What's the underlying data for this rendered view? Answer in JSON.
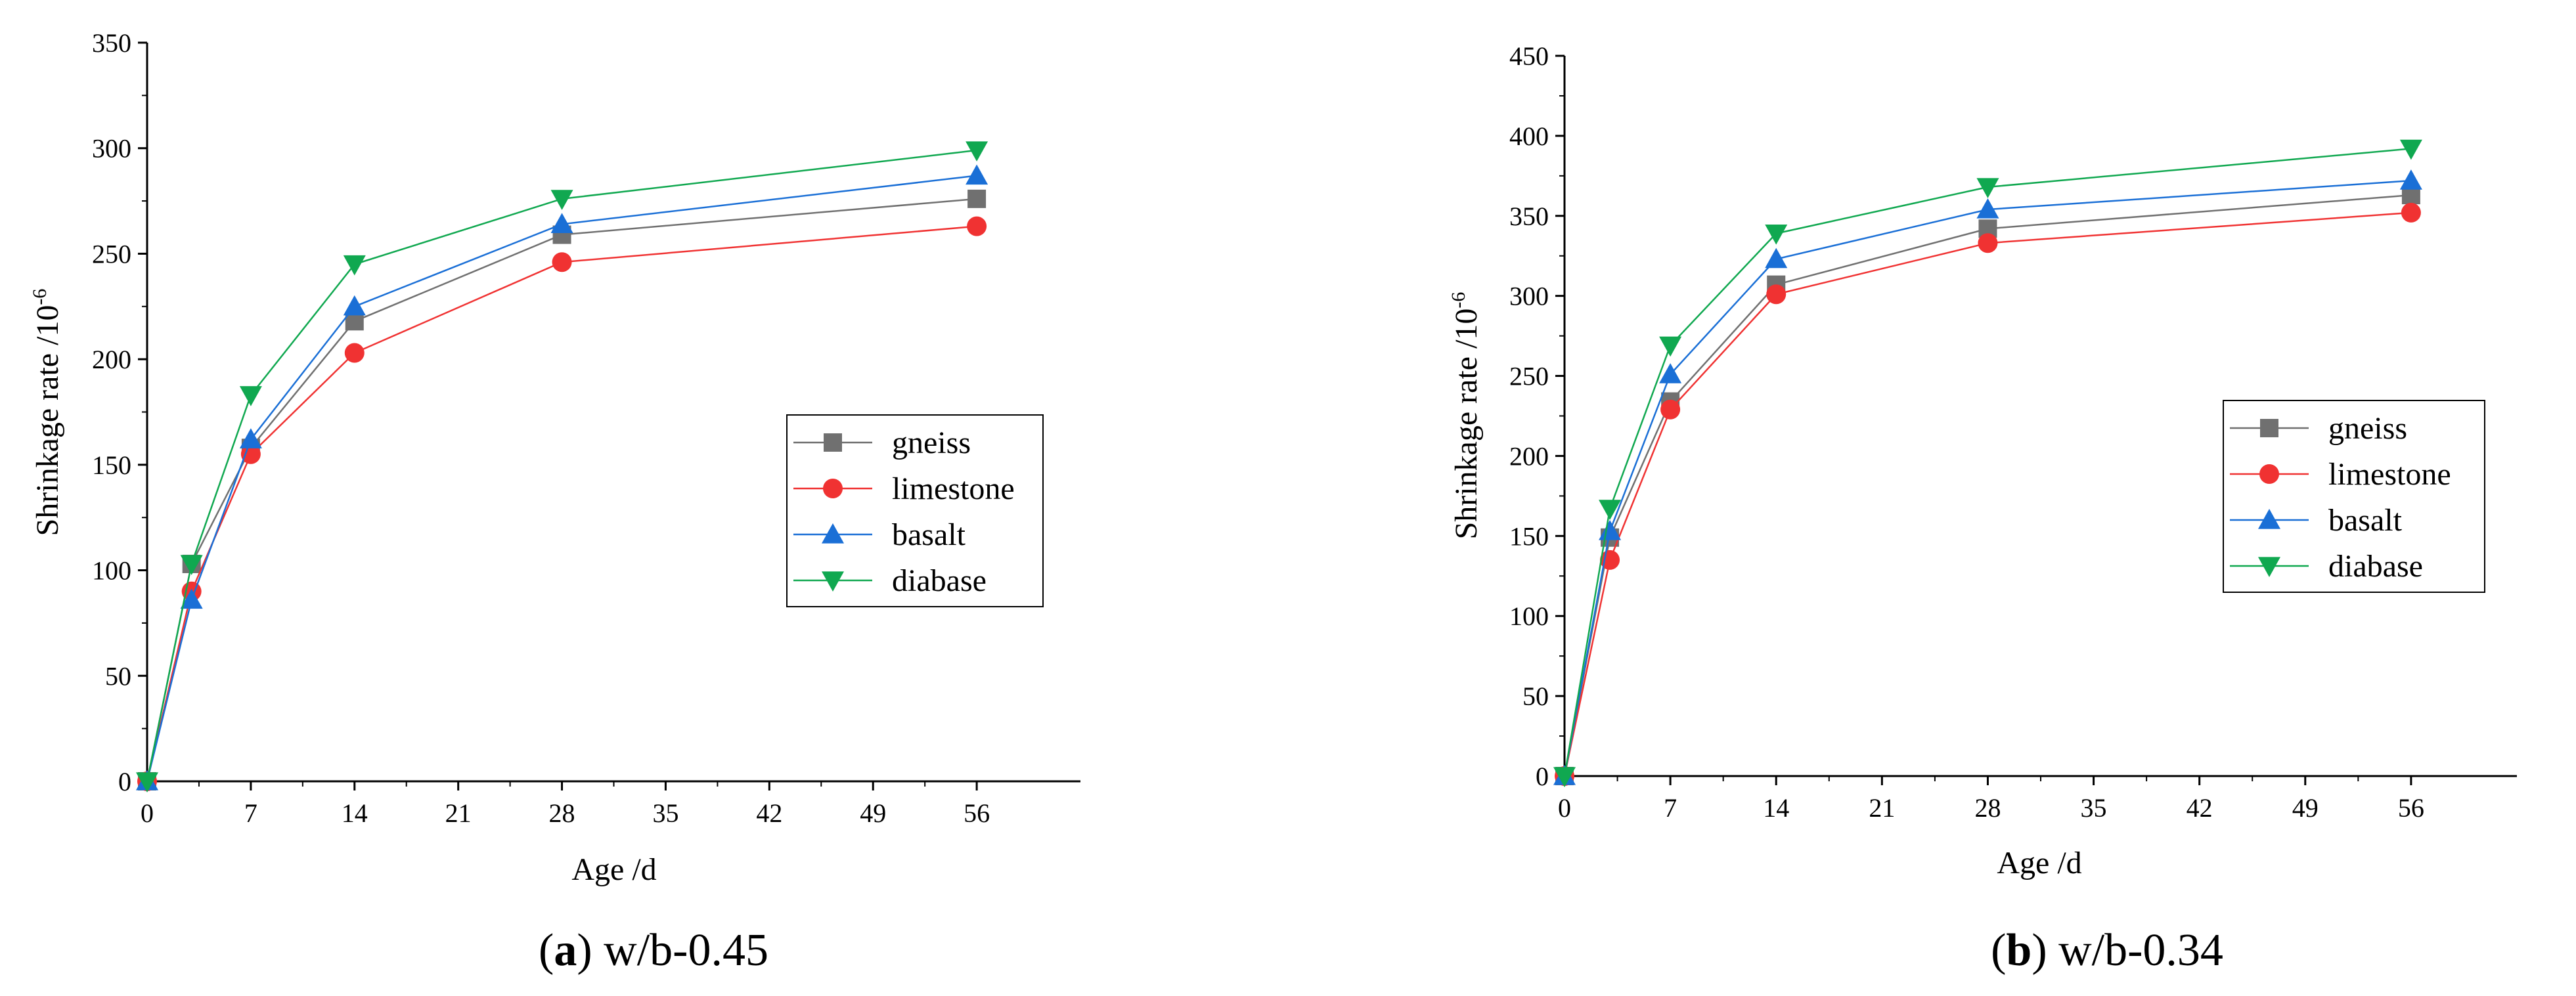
{
  "chart_data": [
    {
      "type": "line",
      "caption_letter": "a",
      "caption_text": " w/b-0.45",
      "xlabel": "Age /d",
      "ylabel": "Shrinkage rate /10",
      "ylabel_exp": "-6",
      "xlim": [
        0,
        63
      ],
      "ylim": [
        0,
        350
      ],
      "xticks": [
        0,
        7,
        14,
        21,
        28,
        35,
        42,
        49,
        56
      ],
      "yticks": [
        0,
        50,
        100,
        150,
        200,
        250,
        300,
        350
      ],
      "legend_position": "center-right",
      "x": [
        0,
        3,
        7,
        14,
        28,
        56
      ],
      "series": [
        {
          "name": "gneiss",
          "marker": "square",
          "color": "#707070",
          "values": [
            0,
            103,
            158,
            218,
            259,
            276
          ]
        },
        {
          "name": "limestone",
          "marker": "circle",
          "color": "#f03232",
          "values": [
            0,
            90,
            155,
            203,
            246,
            263
          ]
        },
        {
          "name": "basalt",
          "marker": "triangle-up",
          "color": "#1a6fd6",
          "values": [
            0,
            86,
            162,
            225,
            264,
            287
          ]
        },
        {
          "name": "diabase",
          "marker": "triangle-down",
          "color": "#10a850",
          "values": [
            0,
            103,
            183,
            245,
            276,
            299
          ]
        }
      ]
    },
    {
      "type": "line",
      "caption_letter": "b",
      "caption_text": " w/b-0.34",
      "xlabel": "Age /d",
      "ylabel": "Shrinkage rate /10",
      "ylabel_exp": "-6",
      "xlim": [
        0,
        63
      ],
      "ylim": [
        0,
        450
      ],
      "xticks": [
        0,
        7,
        14,
        21,
        28,
        35,
        42,
        49,
        56
      ],
      "yticks": [
        0,
        50,
        100,
        150,
        200,
        250,
        300,
        350,
        400,
        450
      ],
      "legend_position": "center-right",
      "x": [
        0,
        3,
        7,
        14,
        28,
        56
      ],
      "series": [
        {
          "name": "gneiss",
          "marker": "square",
          "color": "#707070",
          "values": [
            0,
            149,
            234,
            307,
            342,
            363
          ]
        },
        {
          "name": "limestone",
          "marker": "circle",
          "color": "#f03232",
          "values": [
            0,
            135,
            229,
            301,
            333,
            352
          ]
        },
        {
          "name": "basalt",
          "marker": "triangle-up",
          "color": "#1a6fd6",
          "values": [
            0,
            153,
            251,
            323,
            354,
            372
          ]
        },
        {
          "name": "diabase",
          "marker": "triangle-down",
          "color": "#10a850",
          "values": [
            0,
            167,
            269,
            339,
            368,
            392
          ]
        }
      ]
    }
  ]
}
